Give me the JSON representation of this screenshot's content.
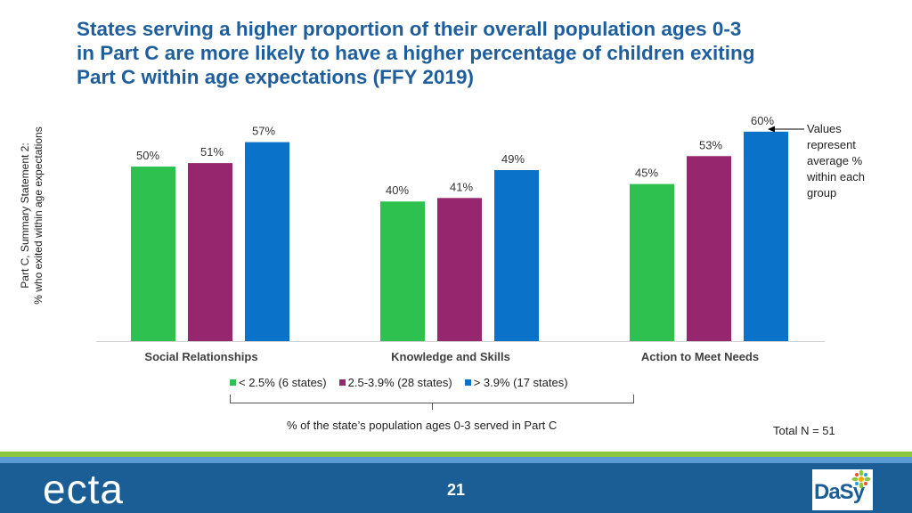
{
  "title": {
    "line1": "States serving a higher proportion of their overall population ages 0-3",
    "line2": "in Part C are more likely to have a higher percentage of children exiting",
    "line3": "Part C within age expectations (FFY 2019)"
  },
  "chart_data": {
    "type": "bar",
    "title": "States serving a higher proportion of their overall population ages 0-3 in Part C are more likely to have a higher percentage of children exiting Part C within age expectations (FFY 2019)",
    "ylabel_line1": "Part C, Summary Statement 2:",
    "ylabel_line2": "% who exited within age expectations",
    "xlabel": "% of the state’s population ages 0-3 served in Part C",
    "categories": [
      "Social Relationships",
      "Knowledge and Skills",
      "Action to Meet Needs"
    ],
    "series": [
      {
        "name": "< 2.5% (6 states)",
        "color": "#2ec14f",
        "values": [
          50,
          40,
          45
        ]
      },
      {
        "name": "2.5-3.9% (28 states)",
        "color": "#96276e",
        "values": [
          51,
          41,
          53
        ]
      },
      {
        "name": "> 3.9% (17 states)",
        "color": "#0a73c9",
        "values": [
          57,
          49,
          60
        ]
      }
    ],
    "value_labels": [
      [
        "50%",
        "40%",
        "45%"
      ],
      [
        "51%",
        "41%",
        "53%"
      ],
      [
        "57%",
        "49%",
        "60%"
      ]
    ],
    "ylim": [
      0,
      62
    ],
    "grid": false,
    "legend_position": "bottom"
  },
  "annotation": {
    "line1": "Values",
    "line2": "represent",
    "line3": "average %",
    "line4": "within each",
    "line5": "group"
  },
  "total_n": "Total N = 51",
  "footer": {
    "logo_left": "ecta",
    "page_number": "21",
    "logo_right": "DaSy"
  }
}
